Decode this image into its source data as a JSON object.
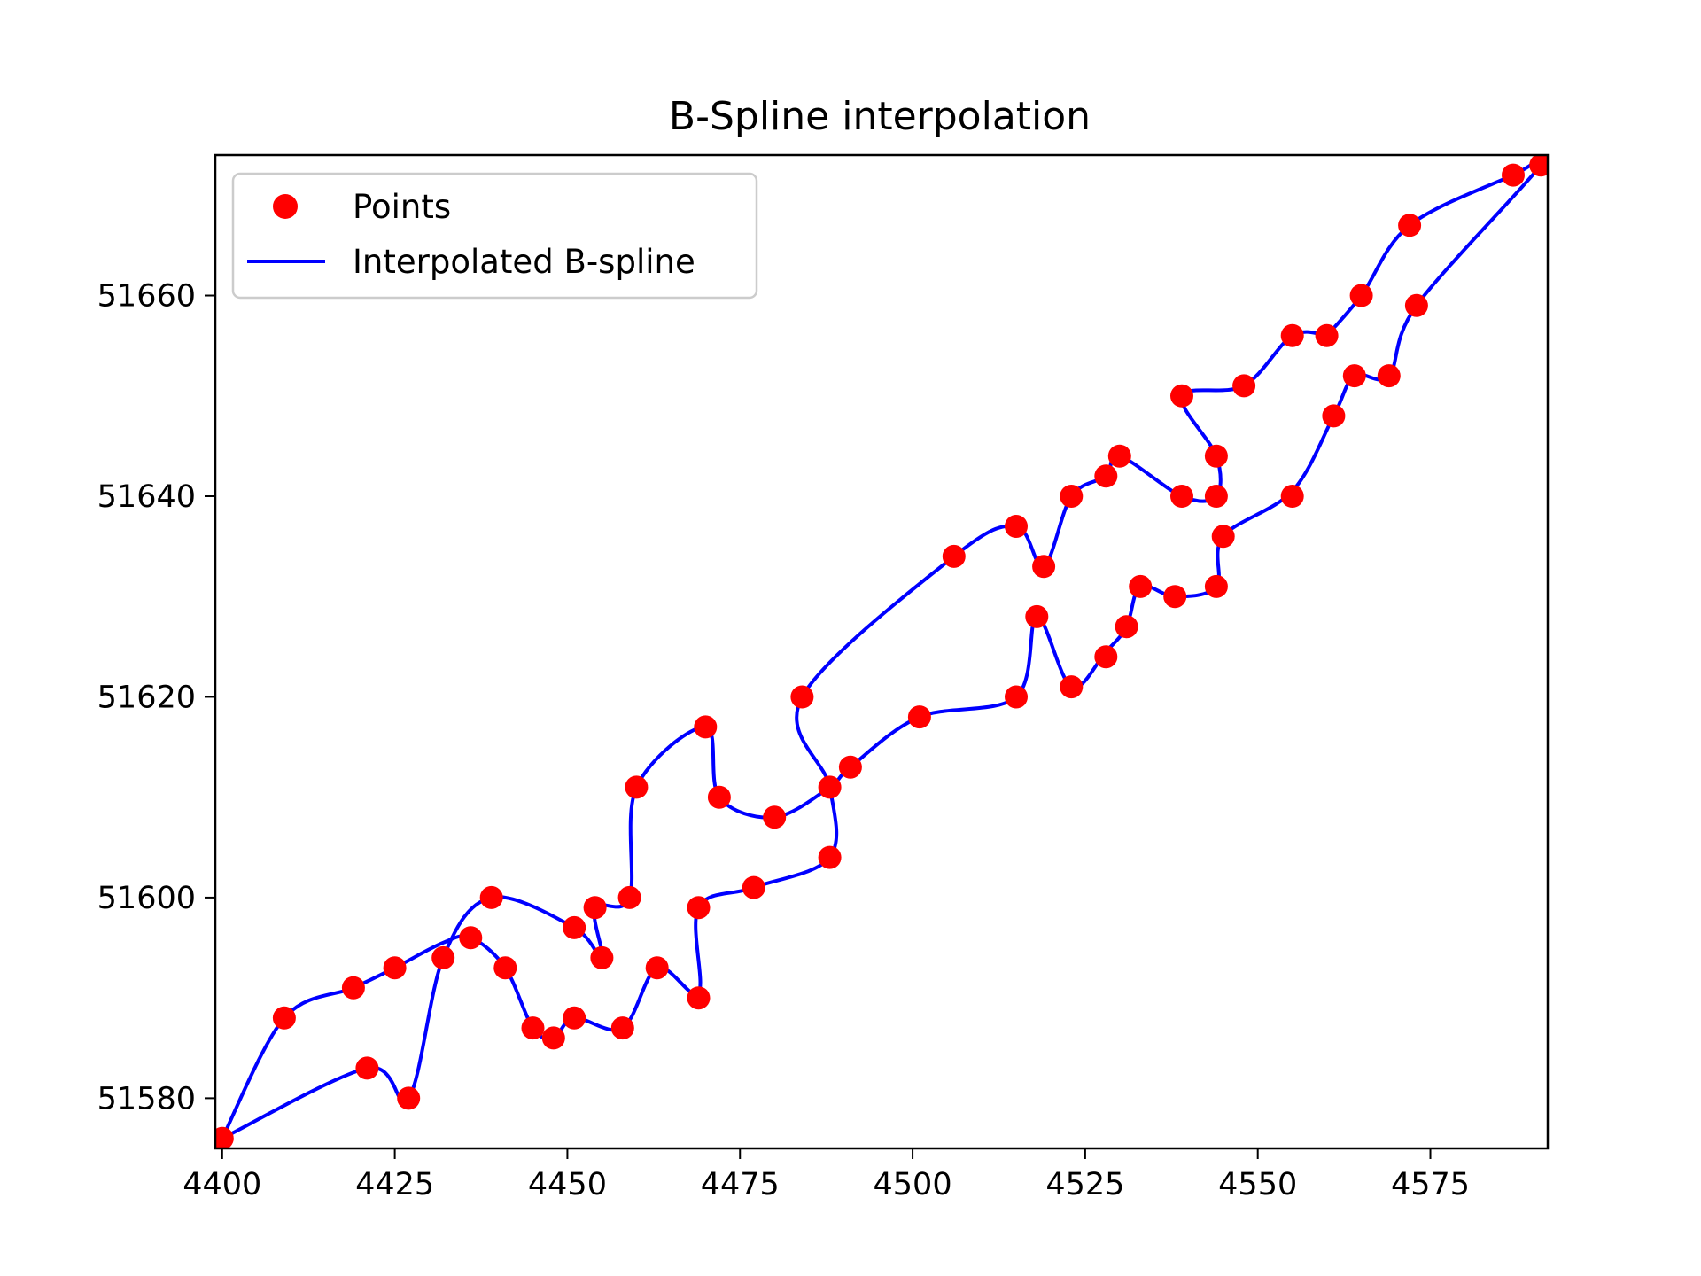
{
  "chart_data": {
    "type": "line",
    "title": "B-Spline interpolation",
    "xlabel": "",
    "ylabel": "",
    "xlim": [
      4399,
      4592
    ],
    "ylim": [
      51575,
      51674
    ],
    "xticks": [
      4400,
      4425,
      4450,
      4475,
      4500,
      4525,
      4550,
      4575
    ],
    "yticks": [
      51580,
      51600,
      51620,
      51640,
      51660
    ],
    "grid": false,
    "legend_position": "top-left",
    "colors": {
      "points": "#ff0000",
      "spline": "#0000ff",
      "axes": "#000000",
      "legend_border": "#cccccc"
    },
    "series": [
      {
        "name": "Points",
        "kind": "scatter",
        "points": [
          [
            4400,
            51576
          ],
          [
            4409,
            51588
          ],
          [
            4419,
            51591
          ],
          [
            4425,
            51593
          ],
          [
            4432,
            51594
          ],
          [
            4436,
            51596
          ],
          [
            4439,
            51600
          ],
          [
            4441,
            51593
          ],
          [
            4451,
            51597
          ],
          [
            4455,
            51594
          ],
          [
            4454,
            51599
          ],
          [
            4459,
            51600
          ],
          [
            4460,
            51611
          ],
          [
            4470,
            51617
          ],
          [
            4472,
            51610
          ],
          [
            4480,
            51608
          ],
          [
            4488,
            51611
          ],
          [
            4491,
            51613
          ],
          [
            4501,
            51618
          ],
          [
            4515,
            51620
          ],
          [
            4518,
            51628
          ],
          [
            4523,
            51621
          ],
          [
            4528,
            51624
          ],
          [
            4531,
            51627
          ],
          [
            4533,
            51631
          ],
          [
            4538,
            51630
          ],
          [
            4544,
            51631
          ],
          [
            4545,
            51636
          ],
          [
            4555,
            51640
          ],
          [
            4561,
            51648
          ],
          [
            4564,
            51652
          ],
          [
            4569,
            51652
          ],
          [
            4573,
            51659
          ],
          [
            4587,
            51672
          ],
          [
            4591,
            51673
          ],
          [
            4572,
            51667
          ],
          [
            4565,
            51660
          ],
          [
            4560,
            51656
          ],
          [
            4555,
            51656
          ],
          [
            4548,
            51651
          ],
          [
            4539,
            51650
          ],
          [
            4544,
            51644
          ],
          [
            4544,
            51640
          ],
          [
            4539,
            51640
          ],
          [
            4530,
            51644
          ],
          [
            4528,
            51642
          ],
          [
            4523,
            51640
          ],
          [
            4519,
            51633
          ],
          [
            4515,
            51637
          ],
          [
            4506,
            51634
          ],
          [
            4484,
            51620
          ],
          [
            4488,
            51604
          ],
          [
            4477,
            51601
          ],
          [
            4469,
            51599
          ],
          [
            4469,
            51590
          ],
          [
            4463,
            51593
          ],
          [
            4458,
            51587
          ],
          [
            4451,
            51588
          ],
          [
            4448,
            51586
          ],
          [
            4445,
            51587
          ],
          [
            4427,
            51580
          ],
          [
            4421,
            51583
          ]
        ]
      },
      {
        "name": "Interpolated B-spline",
        "kind": "line",
        "points": [
          [
            4400,
            51576
          ],
          [
            4409,
            51588
          ],
          [
            4419,
            51591
          ],
          [
            4425,
            51593
          ],
          [
            4432,
            51595.5
          ],
          [
            4436,
            51596
          ],
          [
            4441,
            51593
          ],
          [
            4445,
            51587
          ],
          [
            4448,
            51586
          ],
          [
            4451,
            51588
          ],
          [
            4458,
            51587
          ],
          [
            4463,
            51593
          ],
          [
            4469,
            51590.5
          ],
          [
            4469,
            51599
          ],
          [
            4477,
            51601
          ],
          [
            4488,
            51604
          ],
          [
            4488,
            51611
          ],
          [
            4484,
            51620
          ],
          [
            4506,
            51634
          ],
          [
            4515,
            51637
          ],
          [
            4519,
            51633
          ],
          [
            4523,
            51640
          ],
          [
            4528,
            51642
          ],
          [
            4530,
            51644
          ],
          [
            4539,
            51640
          ],
          [
            4544,
            51640
          ],
          [
            4544,
            51644
          ],
          [
            4539,
            51650
          ],
          [
            4548,
            51651
          ],
          [
            4555,
            51656
          ],
          [
            4560,
            51656
          ],
          [
            4560,
            51656
          ],
          [
            4565,
            51660
          ],
          [
            4572,
            51667
          ],
          [
            4587,
            51672
          ],
          [
            4591,
            51673
          ],
          [
            4573,
            51659
          ],
          [
            4569,
            51652
          ],
          [
            4564,
            51652
          ],
          [
            4561,
            51648
          ],
          [
            4555,
            51640.5
          ],
          [
            4545,
            51636
          ],
          [
            4544,
            51631
          ],
          [
            4538,
            51630
          ],
          [
            4533,
            51631
          ],
          [
            4531,
            51627
          ],
          [
            4528,
            51624.5
          ],
          [
            4523,
            51621
          ],
          [
            4518,
            51628
          ],
          [
            4515,
            51620
          ],
          [
            4501,
            51618
          ],
          [
            4491,
            51613
          ],
          [
            4488,
            51611
          ],
          [
            4480,
            51608
          ],
          [
            4472,
            51610
          ],
          [
            4470,
            51617
          ],
          [
            4460,
            51611
          ],
          [
            4459,
            51600
          ],
          [
            4454,
            51599
          ],
          [
            4455,
            51594
          ],
          [
            4451,
            51597
          ],
          [
            4439,
            51600
          ],
          [
            4432,
            51594
          ],
          [
            4427,
            51580
          ],
          [
            4421,
            51583
          ],
          [
            4400,
            51576
          ]
        ]
      }
    ]
  }
}
